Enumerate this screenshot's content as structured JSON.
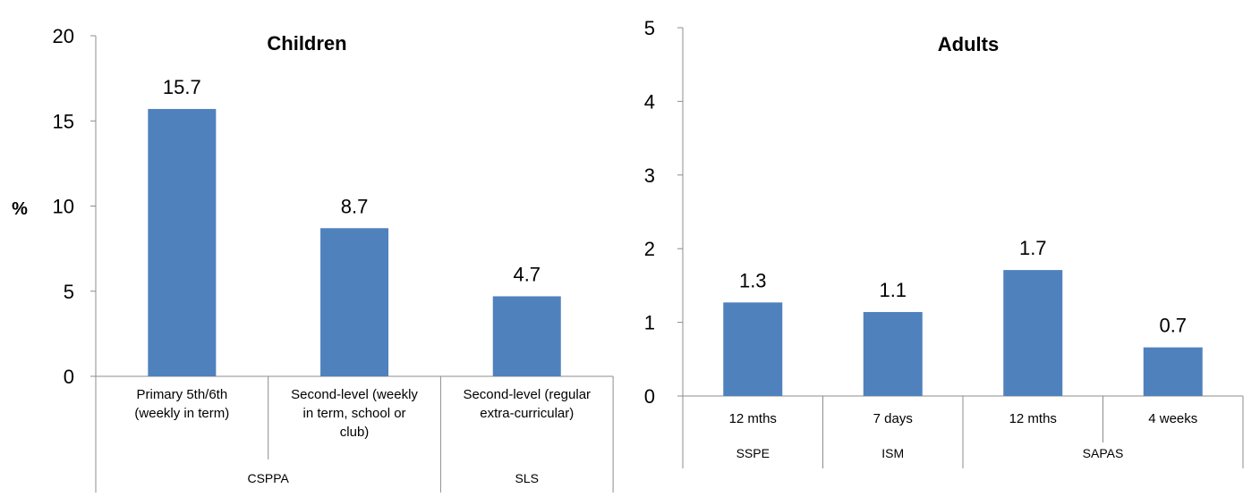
{
  "chart_data": [
    {
      "type": "bar",
      "title": "Children",
      "ylabel": "%",
      "ylim": [
        0,
        20
      ],
      "yticks": [
        0,
        5,
        10,
        15,
        20
      ],
      "categories": [
        [
          "Primary 5th/6th",
          "(weekly in term)"
        ],
        [
          "Second-level (weekly",
          "in term, school or",
          "club)"
        ],
        [
          "Second-level (regular",
          "extra-curricular)"
        ]
      ],
      "groups": [
        {
          "label": "CSPPA",
          "span": [
            0,
            1
          ]
        },
        {
          "label": "SLS",
          "span": [
            2,
            2
          ]
        }
      ],
      "values": [
        15.7,
        8.7,
        4.7
      ],
      "data_labels": [
        "15.7",
        "8.7",
        "4.7"
      ],
      "grid": false,
      "color": "#4f81bd"
    },
    {
      "type": "bar",
      "title": "Adults",
      "ylabel": "",
      "ylim": [
        0,
        5
      ],
      "yticks": [
        0,
        1,
        2,
        3,
        4,
        5
      ],
      "categories": [
        [
          "12 mths"
        ],
        [
          "7 days"
        ],
        [
          "12 mths"
        ],
        [
          "4 weeks"
        ]
      ],
      "groups": [
        {
          "label": "SSPE",
          "span": [
            0,
            0
          ]
        },
        {
          "label": "ISM",
          "span": [
            1,
            1
          ]
        },
        {
          "label": "SAPAS",
          "span": [
            2,
            3
          ]
        }
      ],
      "values": [
        1.3,
        1.1,
        1.7,
        0.7
      ],
      "plotted_values": [
        1.27,
        1.14,
        1.71,
        0.66
      ],
      "data_labels": [
        "1.3",
        "1.1",
        "1.7",
        "0.7"
      ],
      "grid": false,
      "color": "#4f81bd"
    }
  ]
}
